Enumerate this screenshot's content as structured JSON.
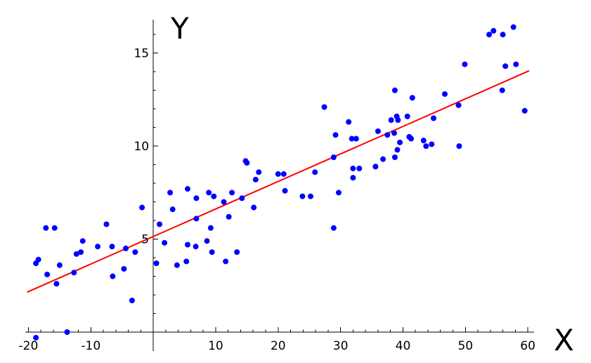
{
  "chart_data": {
    "type": "scatter",
    "title": "",
    "xlabel": "X",
    "ylabel": "Y",
    "xlim": [
      -20.5,
      61
    ],
    "ylim": [
      0,
      16.8
    ],
    "x_axis_at_y": 0,
    "y_axis_at_x": 0,
    "grid": false,
    "xticks": [
      -20,
      -10,
      10,
      20,
      30,
      40,
      50,
      60
    ],
    "xtick_labels": [
      "-20",
      "-10",
      "10",
      "20",
      "30",
      "40",
      "50",
      "60"
    ],
    "xtick_minor_step": 2,
    "yticks": [
      5,
      10,
      15
    ],
    "ytick_labels": [
      "5",
      "10",
      "15"
    ],
    "ytick_minor_step": 1,
    "colors": {
      "points": "#0000ff",
      "line": "#ff0000"
    },
    "series": [
      {
        "type": "scatter",
        "points": [
          [
            -18.8,
            -0.3
          ],
          [
            -18.8,
            3.7
          ],
          [
            -18.4,
            3.9
          ],
          [
            -17.2,
            5.6
          ],
          [
            -17.0,
            3.1
          ],
          [
            -15.8,
            5.6
          ],
          [
            -15.5,
            2.6
          ],
          [
            -15.0,
            3.6
          ],
          [
            -13.8,
            0.0
          ],
          [
            -12.7,
            3.2
          ],
          [
            -12.3,
            4.2
          ],
          [
            -11.6,
            4.3
          ],
          [
            -11.3,
            4.9
          ],
          [
            -8.9,
            4.6
          ],
          [
            -7.5,
            5.8
          ],
          [
            -6.6,
            4.6
          ],
          [
            -6.5,
            3.0
          ],
          [
            -4.7,
            3.4
          ],
          [
            -4.4,
            4.5
          ],
          [
            -3.4,
            1.7
          ],
          [
            -2.9,
            4.3
          ],
          [
            -1.8,
            6.7
          ],
          [
            0.5,
            3.7
          ],
          [
            1.0,
            5.8
          ],
          [
            1.8,
            4.8
          ],
          [
            2.7,
            7.5
          ],
          [
            3.1,
            6.6
          ],
          [
            3.8,
            3.6
          ],
          [
            5.3,
            3.8
          ],
          [
            5.5,
            7.7
          ],
          [
            5.5,
            4.7
          ],
          [
            6.8,
            4.6
          ],
          [
            6.9,
            7.2
          ],
          [
            6.9,
            6.1
          ],
          [
            8.6,
            4.9
          ],
          [
            8.9,
            7.5
          ],
          [
            9.2,
            5.6
          ],
          [
            9.4,
            4.3
          ],
          [
            9.7,
            7.3
          ],
          [
            11.3,
            7.0
          ],
          [
            11.6,
            3.8
          ],
          [
            12.1,
            6.2
          ],
          [
            12.6,
            7.5
          ],
          [
            13.4,
            4.3
          ],
          [
            14.2,
            7.2
          ],
          [
            14.8,
            9.2
          ],
          [
            15.0,
            9.1
          ],
          [
            16.1,
            6.7
          ],
          [
            16.4,
            8.2
          ],
          [
            16.9,
            8.6
          ],
          [
            20.0,
            8.5
          ],
          [
            20.9,
            8.5
          ],
          [
            21.1,
            7.6
          ],
          [
            23.9,
            7.3
          ],
          [
            25.2,
            7.3
          ],
          [
            25.9,
            8.6
          ],
          [
            27.4,
            12.1
          ],
          [
            28.9,
            5.6
          ],
          [
            28.9,
            9.4
          ],
          [
            29.2,
            10.6
          ],
          [
            29.7,
            7.5
          ],
          [
            31.3,
            11.3
          ],
          [
            31.8,
            10.4
          ],
          [
            32.0,
            8.8
          ],
          [
            32.0,
            8.3
          ],
          [
            32.5,
            10.4
          ],
          [
            33.0,
            8.8
          ],
          [
            35.6,
            8.9
          ],
          [
            36.0,
            10.8
          ],
          [
            36.8,
            9.3
          ],
          [
            37.5,
            10.6
          ],
          [
            38.1,
            11.4
          ],
          [
            38.6,
            10.7
          ],
          [
            38.7,
            13.0
          ],
          [
            38.7,
            9.4
          ],
          [
            39.0,
            11.6
          ],
          [
            39.1,
            9.8
          ],
          [
            39.2,
            11.4
          ],
          [
            39.5,
            10.2
          ],
          [
            40.7,
            11.6
          ],
          [
            41.0,
            10.5
          ],
          [
            41.3,
            10.4
          ],
          [
            41.5,
            12.6
          ],
          [
            43.3,
            10.3
          ],
          [
            43.7,
            10.0
          ],
          [
            44.6,
            10.1
          ],
          [
            44.9,
            11.5
          ],
          [
            46.7,
            12.8
          ],
          [
            48.9,
            12.2
          ],
          [
            49.0,
            10.0
          ],
          [
            49.9,
            14.4
          ],
          [
            53.8,
            16.0
          ],
          [
            54.5,
            16.2
          ],
          [
            55.9,
            13.0
          ],
          [
            56.0,
            16.0
          ],
          [
            56.4,
            14.3
          ],
          [
            57.7,
            16.4
          ],
          [
            58.1,
            14.4
          ],
          [
            59.5,
            11.9
          ]
        ]
      },
      {
        "type": "line",
        "points": [
          [
            -20.2,
            2.15
          ],
          [
            60.2,
            14.05
          ]
        ]
      }
    ]
  }
}
